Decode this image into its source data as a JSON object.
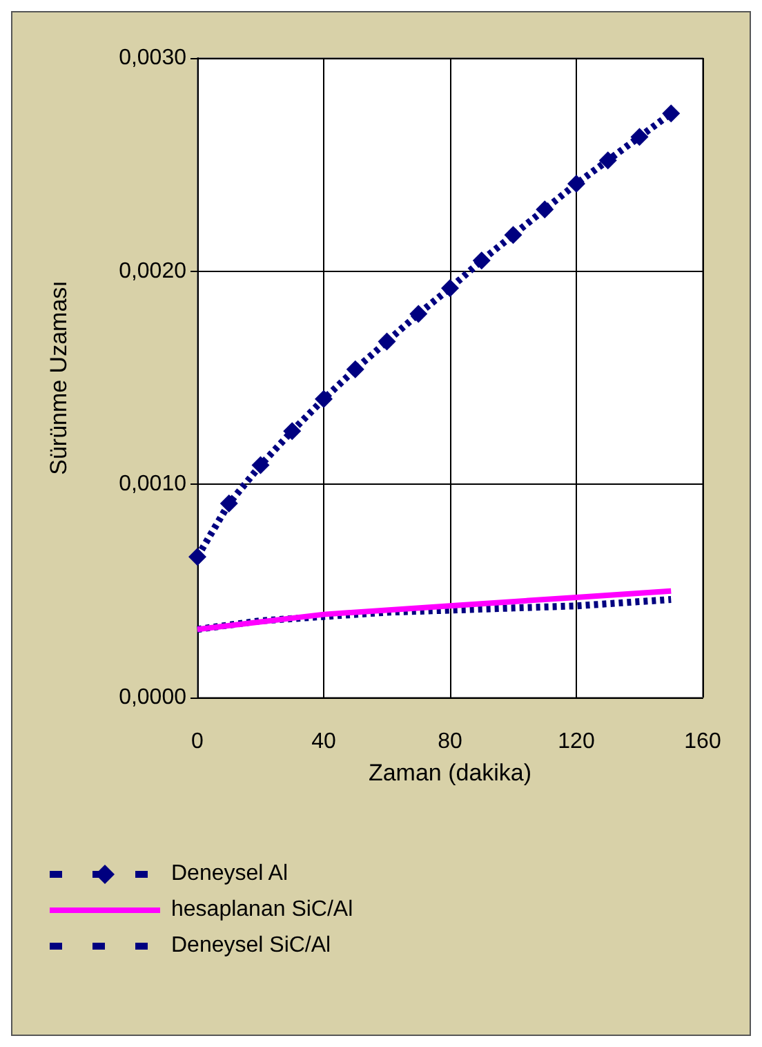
{
  "chart_data": {
    "type": "line",
    "xlabel": "Zaman (dakika)",
    "ylabel": "Sürünme Uzaması",
    "xlim": [
      0,
      160
    ],
    "xticks": [
      0,
      40,
      80,
      120,
      160
    ],
    "ylim": [
      0,
      0.003
    ],
    "yticks": [
      {
        "value": 0,
        "label": "0,0000"
      },
      {
        "value": 0.001,
        "label": "0,0010"
      },
      {
        "value": 0.002,
        "label": "0,0020"
      },
      {
        "value": 0.003,
        "label": "0,0030"
      }
    ],
    "grid": true,
    "legend": "bottom",
    "series": [
      {
        "name": "Deneysel Al",
        "color": "#000080",
        "marker": "diamond",
        "line_style": "dashed",
        "x": [
          0,
          10,
          20,
          30,
          40,
          50,
          60,
          70,
          80,
          90,
          100,
          110,
          120,
          130,
          140,
          150
        ],
        "values": [
          0.00066,
          0.00091,
          0.00109,
          0.00125,
          0.0014,
          0.00154,
          0.00167,
          0.0018,
          0.00192,
          0.00205,
          0.00217,
          0.00229,
          0.00241,
          0.00252,
          0.00263,
          0.00274
        ]
      },
      {
        "name": "hesaplanan SiC/Al",
        "color": "#ff00ff",
        "marker": "none",
        "line_style": "solid",
        "x": [
          0,
          40,
          80,
          120,
          150
        ],
        "values": [
          0.00032,
          0.00039,
          0.00043,
          0.00047,
          0.0005
        ]
      },
      {
        "name": "Deneysel SiC/Al",
        "color": "#000080",
        "marker": "none",
        "line_style": "dashed",
        "x": [
          0,
          20,
          40,
          60,
          80,
          100,
          120,
          140,
          150
        ],
        "values": [
          0.00032,
          0.00036,
          0.00038,
          0.0004,
          0.00041,
          0.00042,
          0.00043,
          0.00045,
          0.00046
        ]
      }
    ]
  }
}
